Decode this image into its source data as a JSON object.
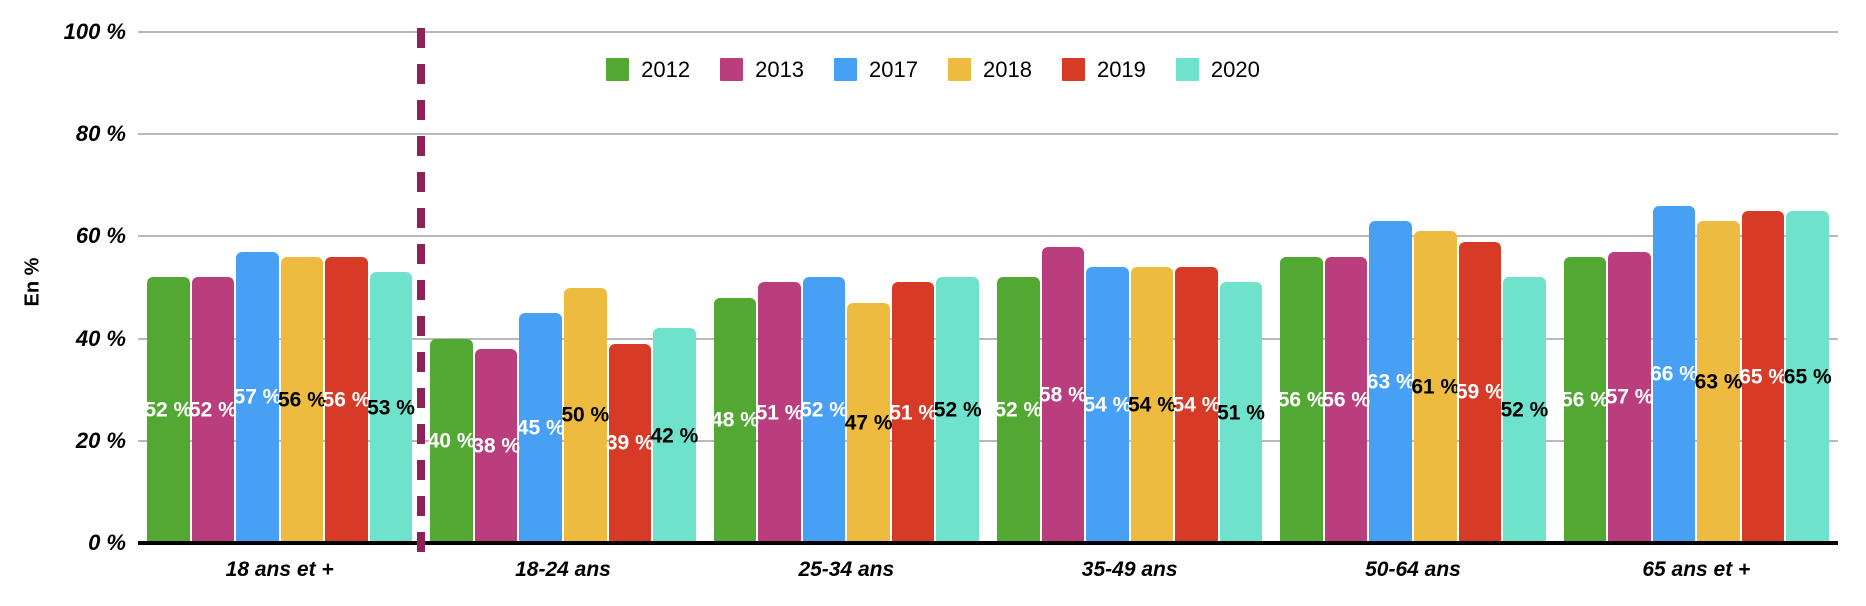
{
  "chart_data": {
    "type": "bar",
    "title": "",
    "xlabel": "",
    "ylabel": "En %",
    "ylim": [
      0,
      100
    ],
    "yticks": [
      0,
      20,
      40,
      60,
      80,
      100
    ],
    "ytick_suffix": " %",
    "value_suffix": " %",
    "grid": true,
    "gridline_color": "#b9b9b9",
    "axis_color": "#000000",
    "legend_position": "top-center",
    "categories": [
      "18 ans et +",
      "18-24 ans",
      "25-34 ans",
      "35-49 ans",
      "50-64 ans",
      "65 ans et +"
    ],
    "series": [
      {
        "name": "2012",
        "color": "#52A833",
        "label_color": "#ffffff",
        "values": [
          52,
          40,
          48,
          52,
          56,
          56
        ]
      },
      {
        "name": "2013",
        "color": "#BA3D7D",
        "label_color": "#ffffff",
        "values": [
          52,
          38,
          51,
          58,
          56,
          57
        ]
      },
      {
        "name": "2017",
        "color": "#48A0F5",
        "label_color": "#ffffff",
        "values": [
          57,
          45,
          52,
          54,
          63,
          66
        ]
      },
      {
        "name": "2018",
        "color": "#EEBB41",
        "label_color": "#000000",
        "values": [
          56,
          50,
          47,
          54,
          61,
          63
        ]
      },
      {
        "name": "2019",
        "color": "#D83A28",
        "label_color": "#ffffff",
        "values": [
          56,
          39,
          51,
          54,
          59,
          65
        ]
      },
      {
        "name": "2020",
        "color": "#6FE2CC",
        "label_color": "#000000",
        "values": [
          53,
          42,
          52,
          51,
          52,
          65
        ]
      }
    ],
    "separator": {
      "after_category": "18 ans et +",
      "style": "dashed",
      "color": "#8E2157"
    }
  }
}
